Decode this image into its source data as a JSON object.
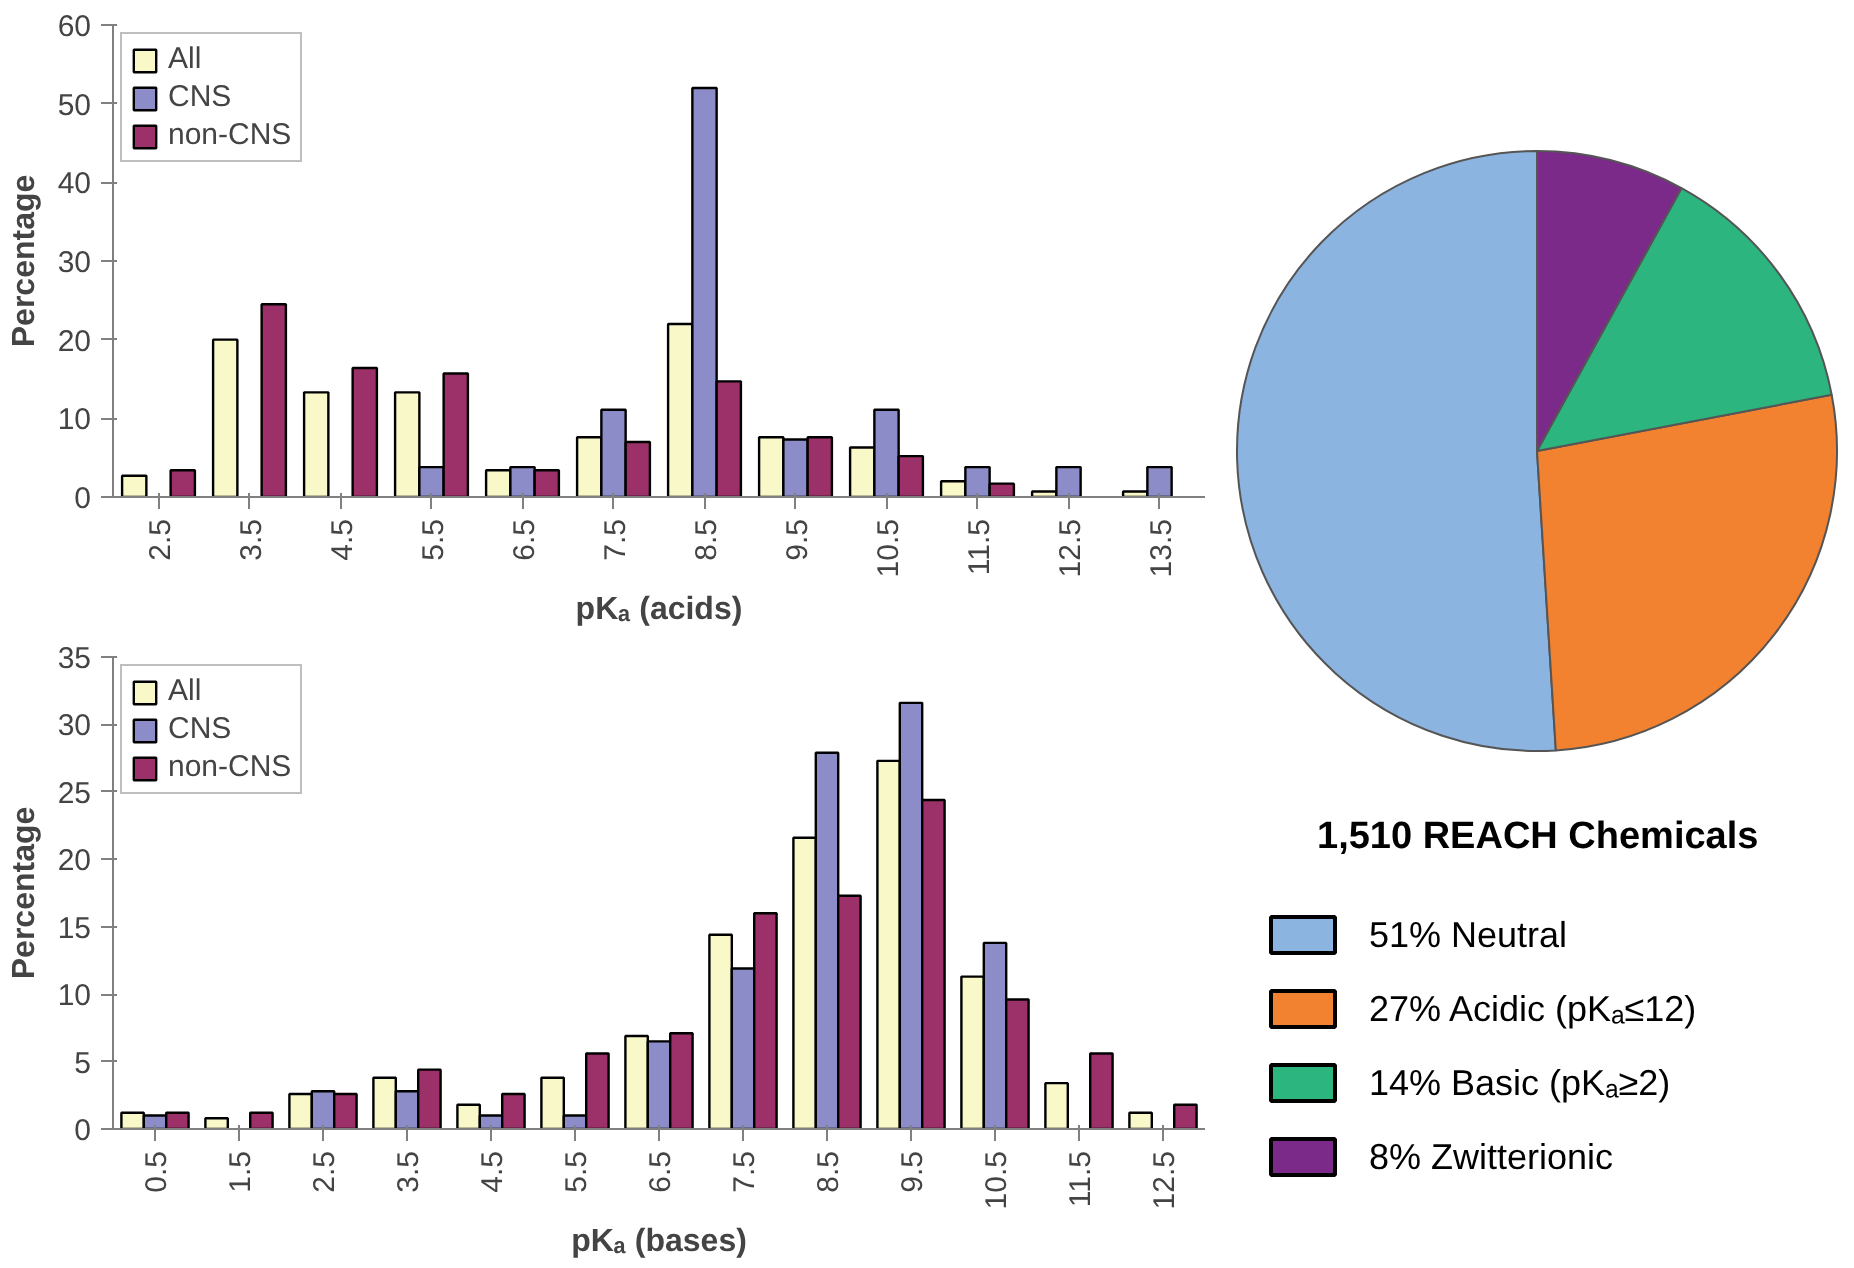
{
  "chart_data": [
    {
      "type": "bar",
      "xlabel": "pKₐ (acids)",
      "ylabel": "Percentage",
      "categories": [
        "2.5",
        "3.5",
        "4.5",
        "5.5",
        "6.5",
        "7.5",
        "8.5",
        "9.5",
        "10.5",
        "11.5",
        "12.5",
        "13.5"
      ],
      "ylim": [
        0,
        60
      ],
      "yticks": [
        0,
        10,
        20,
        30,
        40,
        50,
        60
      ],
      "grid": false,
      "legend": "top left",
      "series": [
        {
          "name": "All",
          "color": "#f8f8c8",
          "values": [
            2.7,
            20,
            13.3,
            13.3,
            3.4,
            7.6,
            22,
            7.6,
            6.3,
            2,
            0.7,
            0.7
          ]
        },
        {
          "name": "CNS",
          "color": "#8c8cc8",
          "values": [
            null,
            null,
            null,
            3.8,
            3.8,
            11.1,
            52,
            7.3,
            11.1,
            3.8,
            3.8,
            3.8
          ]
        },
        {
          "name": "non-CNS",
          "color": "#9c3068",
          "values": [
            3.4,
            24.5,
            16.4,
            15.7,
            3.4,
            7,
            14.7,
            7.6,
            5.2,
            1.7,
            null,
            null
          ]
        }
      ]
    },
    {
      "type": "bar",
      "xlabel": "pKₐ (bases)",
      "ylabel": "Percentage",
      "categories": [
        "0.5",
        "1.5",
        "2.5",
        "3.5",
        "4.5",
        "5.5",
        "6.5",
        "7.5",
        "8.5",
        "9.5",
        "10.5",
        "11.5",
        "12.5"
      ],
      "ylim": [
        0,
        35
      ],
      "yticks": [
        0,
        5,
        10,
        15,
        20,
        25,
        30,
        35
      ],
      "grid": false,
      "legend": "top left",
      "series": [
        {
          "name": "All",
          "color": "#f8f8c8",
          "values": [
            1.2,
            0.8,
            2.6,
            3.8,
            1.8,
            3.8,
            6.9,
            14.4,
            21.6,
            27.3,
            11.3,
            3.4,
            1.2
          ]
        },
        {
          "name": "CNS",
          "color": "#8c8cc8",
          "values": [
            1.0,
            null,
            2.8,
            2.8,
            1.0,
            1.0,
            6.5,
            11.9,
            27.9,
            31.6,
            13.8,
            null,
            null
          ]
        },
        {
          "name": "non-CNS",
          "color": "#9c3068",
          "values": [
            1.2,
            1.2,
            2.6,
            4.4,
            2.6,
            5.6,
            7.1,
            16.0,
            17.3,
            24.4,
            9.6,
            5.6,
            1.8
          ]
        }
      ]
    },
    {
      "type": "pie",
      "title": "1,510  REACH Chemicals",
      "legend": "bottom",
      "categories": [
        "51% Neutral",
        "27% Acidic (pKₐ≤12)",
        "14% Basic (pKₐ≥2)",
        "8% Zwitterionic"
      ],
      "values": [
        51,
        27,
        14,
        8
      ],
      "colors": [
        "#8cb4e0",
        "#f28130",
        "#2cb57e",
        "#7b2a8a"
      ]
    }
  ]
}
